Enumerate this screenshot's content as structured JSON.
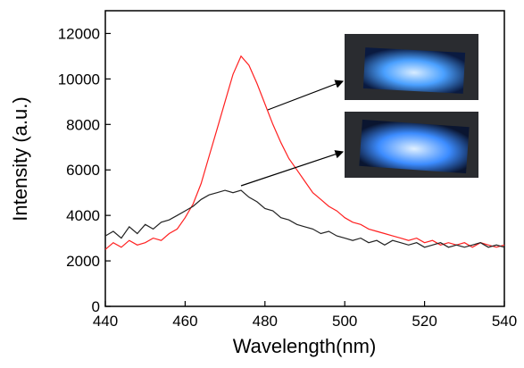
{
  "chart_data": {
    "type": "line",
    "xlabel": "Wavelength(nm)",
    "ylabel": "Intensity (a.u.)",
    "x": [
      440,
      442,
      444,
      446,
      448,
      450,
      452,
      454,
      456,
      458,
      460,
      462,
      464,
      466,
      468,
      470,
      472,
      474,
      476,
      478,
      480,
      482,
      484,
      486,
      488,
      490,
      492,
      494,
      496,
      498,
      500,
      502,
      504,
      506,
      508,
      510,
      512,
      514,
      516,
      518,
      520,
      522,
      524,
      526,
      528,
      530,
      532,
      534,
      536,
      538,
      540
    ],
    "series": [
      {
        "color": "#ff2020",
        "values": [
          2500,
          2800,
          2600,
          2900,
          2700,
          2800,
          3000,
          2900,
          3200,
          3400,
          3900,
          4500,
          5400,
          6600,
          7800,
          9000,
          10200,
          11000,
          10600,
          9800,
          8900,
          8000,
          7200,
          6500,
          6000,
          5500,
          5000,
          4700,
          4400,
          4200,
          3900,
          3700,
          3600,
          3400,
          3300,
          3200,
          3100,
          3000,
          2900,
          3000,
          2800,
          2900,
          2700,
          2800,
          2700,
          2800,
          2600,
          2800,
          2700,
          2600,
          2700
        ]
      },
      {
        "color": "#222222",
        "values": [
          3100,
          3300,
          3000,
          3500,
          3200,
          3600,
          3400,
          3700,
          3800,
          4000,
          4200,
          4400,
          4700,
          4900,
          5000,
          5100,
          5000,
          5100,
          4800,
          4600,
          4300,
          4200,
          3900,
          3800,
          3600,
          3500,
          3400,
          3200,
          3300,
          3100,
          3000,
          2900,
          3000,
          2800,
          2900,
          2700,
          2900,
          2800,
          2700,
          2800,
          2600,
          2700,
          2800,
          2600,
          2700,
          2600,
          2700,
          2800,
          2600,
          2700,
          2600
        ]
      }
    ],
    "xlim": [
      440,
      540
    ],
    "xticks": [
      440,
      460,
      480,
      500,
      520,
      540
    ],
    "ylim": [
      0,
      13000
    ],
    "yticks": [
      0,
      2000,
      4000,
      6000,
      8000,
      10000,
      12000
    ]
  }
}
